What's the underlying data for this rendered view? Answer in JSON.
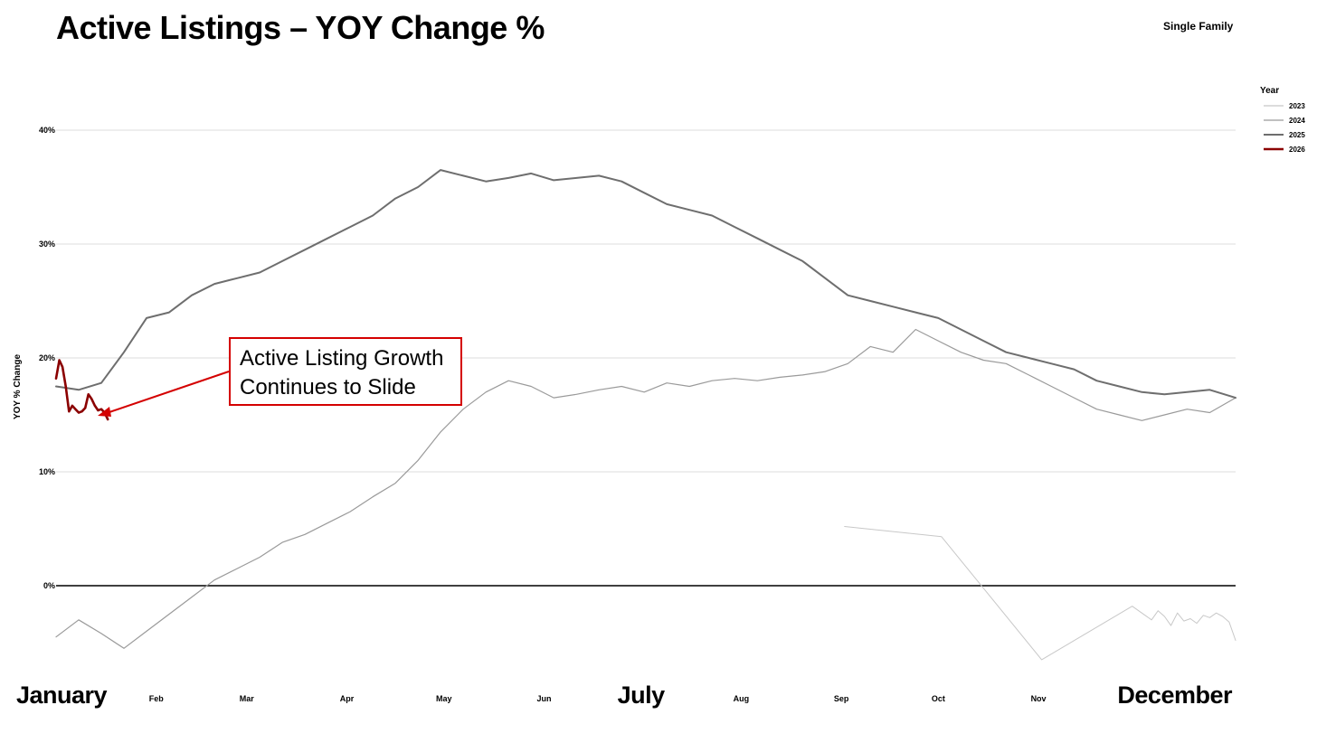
{
  "title": "Active Listings – YOY Change %",
  "subtitle": "Single Family",
  "annotation": {
    "line1": "Active Listing Growth",
    "line2": "Continues to Slide",
    "color": "#d40000"
  },
  "colors": {
    "2023": "#c8c8c8",
    "2024": "#9a9a9a",
    "2025": "#6e6e6e",
    "2026": "#8b0000",
    "grid": "#dcdcdc",
    "zero": "#000000"
  },
  "chart_data": {
    "type": "line",
    "title": "Active Listings – YOY Change %",
    "ylabel": "YOY % Change",
    "ylim": [
      -7,
      43
    ],
    "xlim": [
      1,
      366
    ],
    "grid": true,
    "legend_position": "top-right",
    "legend_title": "Year",
    "y_ticks": [
      0,
      10,
      20,
      30,
      40
    ],
    "y_tick_labels": [
      "0%",
      "10%",
      "20%",
      "30%",
      "40%"
    ],
    "x_ticks": [
      1,
      32,
      60,
      91,
      121,
      152,
      182,
      213,
      244,
      274,
      305,
      335
    ],
    "x_tick_labels": [
      "January",
      "Feb",
      "Mar",
      "Apr",
      "May",
      "Jun",
      "July",
      "Aug",
      "Sep",
      "Oct",
      "Nov",
      "December"
    ],
    "x_tick_emphasis": [
      true,
      false,
      false,
      false,
      false,
      false,
      true,
      false,
      false,
      false,
      false,
      true
    ],
    "series": [
      {
        "name": "2023",
        "day": [
          245,
          275,
          306,
          334,
          338,
          340,
          342,
          344,
          346,
          348,
          350,
          352,
          354,
          356,
          358,
          360,
          362,
          364,
          366
        ],
        "values": [
          5.2,
          4.3,
          -6.5,
          -1.8,
          -2.6,
          -3.0,
          -2.2,
          -2.7,
          -3.5,
          -2.4,
          -3.1,
          -2.9,
          -3.3,
          -2.6,
          -2.8,
          -2.4,
          -2.7,
          -3.2,
          -4.8
        ]
      },
      {
        "name": "2024",
        "day": [
          1,
          8,
          15,
          22,
          29,
          36,
          43,
          50,
          57,
          64,
          71,
          78,
          85,
          92,
          99,
          106,
          113,
          120,
          127,
          134,
          141,
          148,
          155,
          162,
          169,
          176,
          183,
          190,
          197,
          204,
          211,
          218,
          225,
          232,
          239,
          246,
          253,
          260,
          267,
          274,
          281,
          288,
          295,
          302,
          309,
          316,
          323,
          330,
          337,
          344,
          351,
          358,
          366
        ],
        "values": [
          -4.5,
          -3.0,
          -4.2,
          -5.5,
          -4.0,
          -2.5,
          -1.0,
          0.5,
          1.5,
          2.5,
          3.8,
          4.5,
          5.5,
          6.5,
          7.8,
          9.0,
          11.0,
          13.5,
          15.5,
          17.0,
          18.0,
          17.5,
          16.5,
          16.8,
          17.2,
          17.5,
          17.0,
          17.8,
          17.5,
          18.0,
          18.2,
          18.0,
          18.3,
          18.5,
          18.8,
          19.5,
          21.0,
          20.5,
          22.5,
          21.5,
          20.5,
          19.8,
          19.5,
          18.5,
          17.5,
          16.5,
          15.5,
          15.0,
          14.5,
          15.0,
          15.5,
          15.2,
          16.5
        ]
      },
      {
        "name": "2025",
        "day": [
          1,
          8,
          15,
          22,
          29,
          36,
          43,
          50,
          57,
          64,
          71,
          78,
          85,
          92,
          99,
          106,
          113,
          120,
          127,
          134,
          141,
          148,
          155,
          162,
          169,
          176,
          183,
          190,
          197,
          204,
          211,
          218,
          225,
          232,
          239,
          246,
          253,
          260,
          267,
          274,
          281,
          288,
          295,
          302,
          309,
          316,
          323,
          330,
          337,
          344,
          351,
          358,
          366
        ],
        "values": [
          17.5,
          17.2,
          17.8,
          20.5,
          23.5,
          24.0,
          25.5,
          26.5,
          27.0,
          27.5,
          28.5,
          29.5,
          30.5,
          31.5,
          32.5,
          34.0,
          35.0,
          36.5,
          36.0,
          35.5,
          35.8,
          36.2,
          35.6,
          35.8,
          36.0,
          35.5,
          34.5,
          33.5,
          33.0,
          32.5,
          31.5,
          30.5,
          29.5,
          28.5,
          27.0,
          25.5,
          25.0,
          24.5,
          24.0,
          23.5,
          22.5,
          21.5,
          20.5,
          20.0,
          19.5,
          19.0,
          18.0,
          17.5,
          17.0,
          16.8,
          17.0,
          17.2,
          16.5
        ]
      },
      {
        "name": "2026",
        "day": [
          1,
          2,
          3,
          4,
          5,
          6,
          7,
          8,
          9,
          10,
          11,
          12,
          13,
          14,
          15,
          16,
          17
        ],
        "values": [
          18.2,
          19.8,
          19.2,
          17.5,
          15.3,
          15.8,
          15.5,
          15.2,
          15.3,
          15.6,
          16.8,
          16.4,
          15.8,
          15.4,
          15.5,
          15.2,
          14.6
        ]
      }
    ]
  }
}
